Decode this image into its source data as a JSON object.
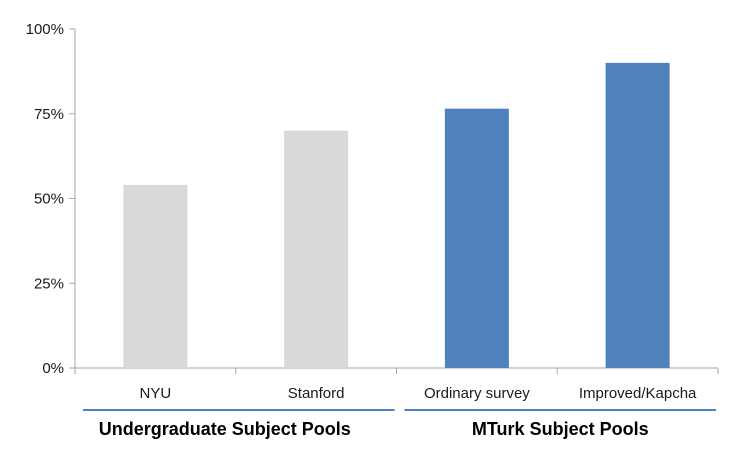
{
  "chart_data": {
    "type": "bar",
    "categories": [
      "NYU",
      "Stanford",
      "Ordinary survey",
      "Improved/Kapcha"
    ],
    "values": [
      54,
      70,
      76.5,
      90
    ],
    "ylim": [
      0,
      100
    ],
    "yticks": [
      0,
      25,
      50,
      75,
      100
    ],
    "ytick_labels": [
      "0%",
      "25%",
      "50%",
      "75%",
      "100%"
    ],
    "groups": [
      {
        "label": "Undergraduate Subject Pools",
        "categories": [
          0,
          1
        ],
        "color": "#d9d9d9"
      },
      {
        "label": "MTurk Subject Pools",
        "categories": [
          2,
          3
        ],
        "color": "#4f81bd"
      }
    ],
    "grid": false,
    "legend": "none"
  },
  "colors": {
    "axis": "#a6a6a6",
    "group_underline": "#4f81bd",
    "light_bar": "#d9d9d9",
    "blue_bar": "#4f81bd"
  }
}
